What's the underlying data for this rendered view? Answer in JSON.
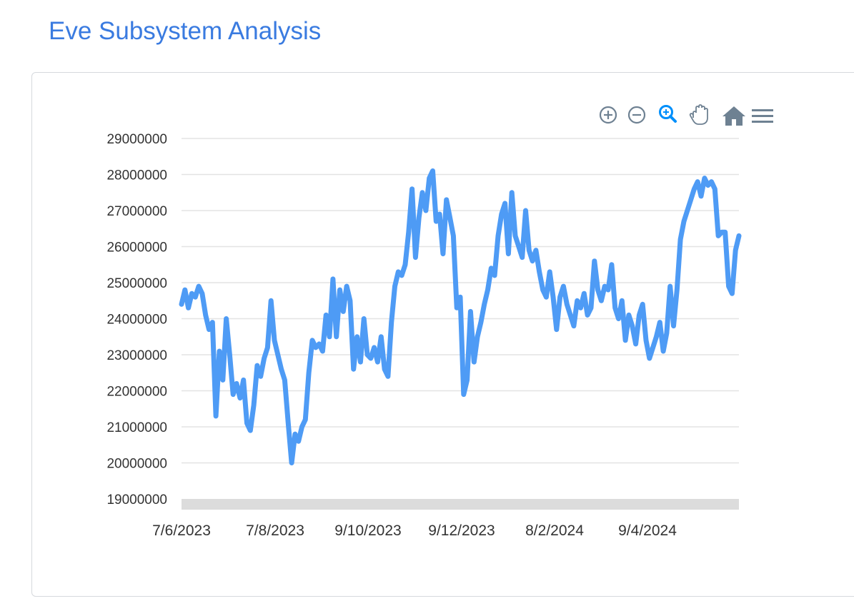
{
  "page": {
    "title": "Eve Subsystem Analysis"
  },
  "toolbar": {
    "tools": [
      {
        "name": "zoom-in-icon"
      },
      {
        "name": "zoom-out-icon"
      },
      {
        "name": "selection-zoom-icon",
        "active": true
      },
      {
        "name": "pan-hand-icon"
      },
      {
        "name": "reset-home-icon"
      },
      {
        "name": "menu-icon"
      }
    ],
    "colors": {
      "normal": "#6e8192",
      "active": "#008ffb"
    }
  },
  "chart_data": {
    "type": "line",
    "title": "",
    "xlabel": "",
    "ylabel": "",
    "ylim": [
      19000000,
      29000000
    ],
    "y_ticks": [
      29000000,
      28000000,
      27000000,
      26000000,
      25000000,
      24000000,
      23000000,
      22000000,
      21000000,
      20000000,
      19000000
    ],
    "x_tick_labels": [
      "7/6/2023",
      "7/8/2023",
      "9/10/2023",
      "9/12/2023",
      "8/2/2024",
      "9/4/2024"
    ],
    "grid": true,
    "legend": "none",
    "series_color": "#4e9bf5",
    "series": [
      {
        "values": [
          24400000,
          24800000,
          24300000,
          24700000,
          24600000,
          24900000,
          24700000,
          24100000,
          23700000,
          23900000,
          21300000,
          23100000,
          22300000,
          24000000,
          23000000,
          21900000,
          22200000,
          21800000,
          22300000,
          21100000,
          20900000,
          21600000,
          22700000,
          22400000,
          22900000,
          23200000,
          24500000,
          23400000,
          23000000,
          22600000,
          22300000,
          21100000,
          20000000,
          20800000,
          20600000,
          21000000,
          21200000,
          22500000,
          23400000,
          23200000,
          23300000,
          23100000,
          24100000,
          23500000,
          25100000,
          23500000,
          24800000,
          24200000,
          24900000,
          24500000,
          22600000,
          23500000,
          22800000,
          24000000,
          23000000,
          22900000,
          23200000,
          22800000,
          23500000,
          22600000,
          22400000,
          23900000,
          24900000,
          25300000,
          25200000,
          25500000,
          26400000,
          27600000,
          25700000,
          26800000,
          27500000,
          27000000,
          27900000,
          28100000,
          26700000,
          26900000,
          25800000,
          27300000,
          26800000,
          26300000,
          24300000,
          24600000,
          21900000,
          22300000,
          24200000,
          22800000,
          23500000,
          23900000,
          24400000,
          24800000,
          25400000,
          25200000,
          26300000,
          26900000,
          27200000,
          25800000,
          27500000,
          26300000,
          26000000,
          25700000,
          27000000,
          25900000,
          25600000,
          25900000,
          25300000,
          24800000,
          24600000,
          25300000,
          24600000,
          23700000,
          24600000,
          24900000,
          24400000,
          24100000,
          23800000,
          24500000,
          24300000,
          24700000,
          24100000,
          24300000,
          25600000,
          24800000,
          24500000,
          24900000,
          24800000,
          25500000,
          24300000,
          24000000,
          24500000,
          23400000,
          24100000,
          23800000,
          23300000,
          24100000,
          24400000,
          23400000,
          22900000,
          23200000,
          23500000,
          23900000,
          23100000,
          23600000,
          24900000,
          23800000,
          24800000,
          26200000,
          26700000,
          27000000,
          27300000,
          27600000,
          27800000,
          27400000,
          27900000,
          27700000,
          27800000,
          27600000,
          26300000,
          26400000,
          26400000,
          24900000,
          24700000,
          25900000,
          26300000
        ]
      }
    ]
  }
}
